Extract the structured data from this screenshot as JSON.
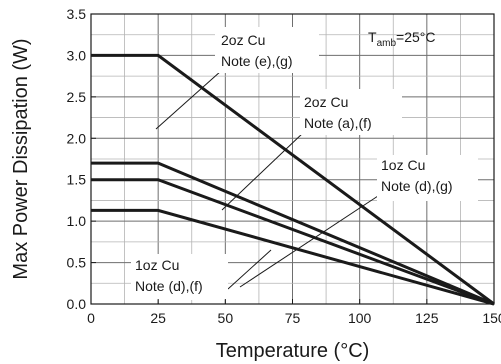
{
  "chart_data": {
    "type": "line",
    "xlabel": "Temperature (°C)",
    "ylabel": "Max Power Dissipation (W)",
    "xlim": [
      0,
      150
    ],
    "ylim": [
      0,
      3.5
    ],
    "xticks": [
      0,
      25,
      50,
      75,
      100,
      125,
      150
    ],
    "yticks": [
      0.0,
      0.5,
      1.0,
      1.5,
      2.0,
      2.5,
      3.0,
      3.5
    ],
    "xtick_labels": [
      "0",
      "25",
      "50",
      "75",
      "100",
      "125",
      "150"
    ],
    "ytick_labels": [
      "0.0",
      "0.5",
      "1.0",
      "1.5",
      "2.0",
      "2.5",
      "3.0",
      "3.5"
    ],
    "grid": true,
    "series": [
      {
        "x": [
          0,
          25,
          150
        ],
        "y": [
          3.0,
          3.0,
          0.0
        ]
      },
      {
        "x": [
          0,
          25,
          150
        ],
        "y": [
          1.7,
          1.7,
          0.0
        ]
      },
      {
        "x": [
          0,
          25,
          150
        ],
        "y": [
          1.5,
          1.5,
          0.0
        ]
      },
      {
        "x": [
          0,
          25,
          150
        ],
        "y": [
          1.13,
          1.13,
          0.0
        ]
      }
    ],
    "annotations": [
      {
        "lines": [
          "2oz Cu",
          "Note (e),(g)"
        ]
      },
      {
        "lines": [
          "2oz Cu",
          "Note (a),(f)"
        ]
      },
      {
        "lines": [
          "1oz Cu",
          "Note (d),(g)"
        ]
      },
      {
        "lines": [
          "1oz Cu",
          "Note (d),(f)"
        ]
      }
    ],
    "condition": {
      "symbol": "T",
      "subscript": "amb",
      "value": "=25°C"
    }
  }
}
